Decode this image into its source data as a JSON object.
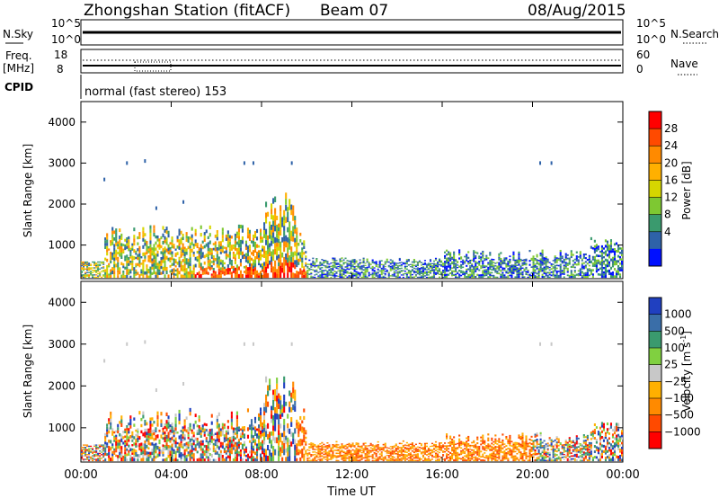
{
  "header": {
    "station": "Zhongshan Station (fitACF)",
    "beam": "Beam 07",
    "date": "08/Aug/2015"
  },
  "top_panels": {
    "nsky_label": "N.Sky",
    "nsky_ticks": [
      "10^5",
      "10^0"
    ],
    "nsearch_label": "N.Search",
    "freq_label": "Freq.",
    "freq_unit": "[MHz]",
    "freq_ticks": [
      "18",
      "8"
    ],
    "nave_label": "Nave",
    "nave_ticks": [
      "60",
      "0"
    ],
    "cpid_label": "CPID",
    "cpid_value": "normal (fast stereo) 153"
  },
  "chart_data": [
    {
      "type": "heatmap",
      "name": "power",
      "ylabel": "Slant Range [km]",
      "yticks": [
        "4000",
        "3000",
        "2000",
        "1000"
      ],
      "ylim": [
        180,
        4500
      ],
      "xlim_hours": [
        0,
        24
      ],
      "colorbar_label": "Power [dB]",
      "colorbar_ticks": [
        "28",
        "24",
        "20",
        "16",
        "12",
        "8",
        "4"
      ],
      "colors": [
        "#ff0000",
        "#ff4a00",
        "#ff8a00",
        "#ffb000",
        "#d6d600",
        "#7ec832",
        "#3a9a6e",
        "#2e62a8",
        "#0010ff"
      ],
      "background_scatter": [
        {
          "t": 0.8,
          "r": 400,
          "v": 0.4
        },
        {
          "t": 1.5,
          "r": 600,
          "v": 0.55
        },
        {
          "t": 2.5,
          "r": 500,
          "v": 0.2
        },
        {
          "t": 3.5,
          "r": 700,
          "v": 0.3
        },
        {
          "t": 5.0,
          "r": 500,
          "v": 0.45
        },
        {
          "t": 6.5,
          "r": 400,
          "v": 0.05
        },
        {
          "t": 8.0,
          "r": 300,
          "v": 0.1
        },
        {
          "t": 9.5,
          "r": 350,
          "v": 0.0
        },
        {
          "t": 12.0,
          "r": 500,
          "v": 0.55
        },
        {
          "t": 14.0,
          "r": 550,
          "v": 0.6
        },
        {
          "t": 16.0,
          "r": 500,
          "v": 0.65
        },
        {
          "t": 18.0,
          "r": 450,
          "v": 0.7
        },
        {
          "t": 20.5,
          "r": 500,
          "v": 0.55
        },
        {
          "t": 23.0,
          "r": 450,
          "v": 0.3
        }
      ]
    },
    {
      "type": "heatmap",
      "name": "velocity",
      "ylabel": "Slant Range [km]",
      "yticks": [
        "4000",
        "3000",
        "2000",
        "1000"
      ],
      "ylim": [
        180,
        4500
      ],
      "xlim_hours": [
        0,
        24
      ],
      "colorbar_label": "Velocity [m s",
      "colorbar_label_sup": "-1",
      "colorbar_label_tail": "]",
      "colorbar_ticks": [
        "1000",
        "500",
        "100",
        "25",
        "−25",
        "−100",
        "−500",
        "−1000"
      ],
      "colors": [
        "#2040c0",
        "#3a6ea8",
        "#3a9a6e",
        "#80d040",
        "#c8c8c8",
        "#ffb000",
        "#ff8a00",
        "#ff4a00",
        "#ff0000"
      ]
    }
  ],
  "xaxis": {
    "ticks": [
      "00:00",
      "04:00",
      "08:00",
      "12:00",
      "16:00",
      "20:00",
      "00:00"
    ],
    "label": "Time UT"
  }
}
